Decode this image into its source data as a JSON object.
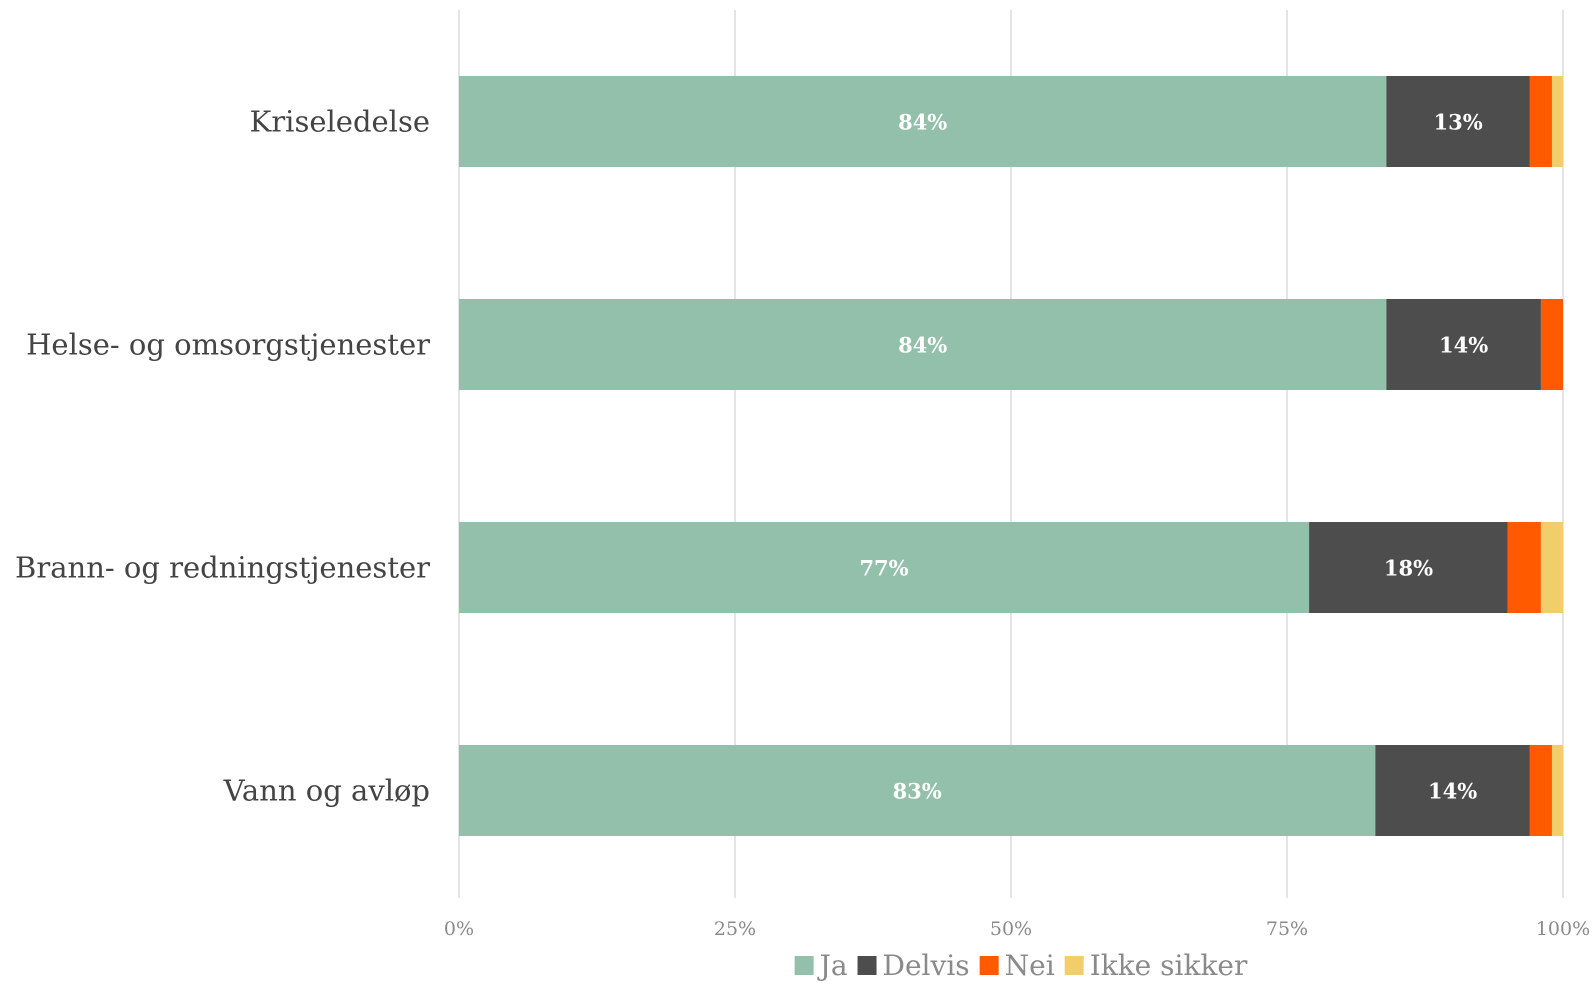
{
  "chart_data": {
    "type": "bar",
    "orientation": "horizontal",
    "stacked": true,
    "categories": [
      "Kriseledelse",
      "Helse- og omsorgstjenester",
      "Brann- og redningstjenester",
      "Vann og avløp"
    ],
    "series": [
      {
        "name": "Ja",
        "color": "#93c0aa",
        "values": [
          84,
          84,
          77,
          83
        ],
        "labels": [
          "84%",
          "84%",
          "77%",
          "83%"
        ]
      },
      {
        "name": "Delvis",
        "color": "#4d4d4d",
        "values": [
          13,
          14,
          18,
          14
        ],
        "labels": [
          "13%",
          "14%",
          "18%",
          "14%"
        ]
      },
      {
        "name": "Nei",
        "color": "#ff5a00",
        "values": [
          2,
          2,
          3,
          2
        ],
        "labels": [
          "",
          "",
          "",
          ""
        ]
      },
      {
        "name": "Ikke sikker",
        "color": "#f2cd6b",
        "values": [
          1,
          0,
          2,
          1
        ],
        "labels": [
          "",
          "",
          "",
          ""
        ]
      }
    ],
    "xlim": [
      0,
      100
    ],
    "xticks": [
      0,
      25,
      50,
      75,
      100
    ],
    "xtick_labels": [
      "0%",
      "25%",
      "50%",
      "75%",
      "100%"
    ],
    "grid": true,
    "legend_position": "bottom"
  }
}
